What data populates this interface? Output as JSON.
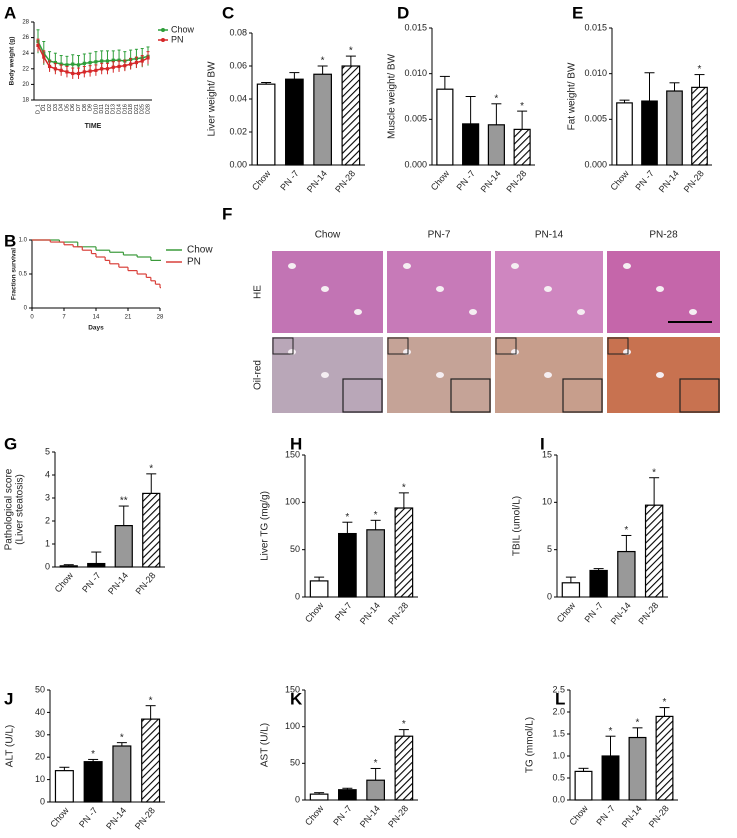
{
  "chart_data": [
    {
      "type": "line",
      "panel": "A",
      "ylabel": "Body weight (g)",
      "xlabel": "TIME",
      "categories": [
        "D_1",
        "D1",
        "D2",
        "D3",
        "D4",
        "D5",
        "D6",
        "D7",
        "D8",
        "D9",
        "D10",
        "D11",
        "D12",
        "D13",
        "D14",
        "D16",
        "D18",
        "D21",
        "D25",
        "D28"
      ],
      "series": [
        {
          "name": "Chow",
          "color": "#2e9e3a",
          "values": [
            25.5,
            24.0,
            23.0,
            22.8,
            22.6,
            22.5,
            22.6,
            22.5,
            22.7,
            22.8,
            22.9,
            23.0,
            23.0,
            23.1,
            23.1,
            23.0,
            23.2,
            23.3,
            23.4,
            23.6
          ],
          "errors": [
            1.5,
            1.5,
            1.2,
            1.2,
            1.1,
            1.1,
            1.2,
            1.2,
            1.2,
            1.2,
            1.3,
            1.3,
            1.3,
            1.2,
            1.3,
            1.2,
            1.2,
            1.2,
            1.2,
            1.2
          ]
        },
        {
          "name": "PN",
          "color": "#d62728",
          "values": [
            25.0,
            23.5,
            22.3,
            22.0,
            21.8,
            21.6,
            21.4,
            21.4,
            21.6,
            21.7,
            21.8,
            22.0,
            22.0,
            22.2,
            22.3,
            22.4,
            22.6,
            22.8,
            23.0,
            23.4
          ],
          "errors": [
            0.8,
            0.8,
            0.7,
            0.7,
            0.7,
            0.7,
            0.7,
            0.7,
            0.7,
            0.7,
            0.7,
            0.7,
            0.7,
            0.7,
            0.7,
            0.7,
            0.7,
            0.7,
            0.7,
            0.8
          ]
        }
      ],
      "ylim": [
        18,
        28
      ],
      "yticks": [
        18,
        20,
        22,
        24,
        26,
        28
      ],
      "legend": "right"
    },
    {
      "type": "step",
      "panel": "B",
      "ylabel": "Fraction survival",
      "xlabel": "Days",
      "series": [
        {
          "name": "Chow",
          "color": "#3a9a3a",
          "x": [
            0,
            6,
            10,
            14,
            17,
            20,
            23,
            26,
            28
          ],
          "values": [
            1,
            0.97,
            0.9,
            0.85,
            0.82,
            0.78,
            0.75,
            0.7,
            0.7
          ]
        },
        {
          "name": "PN",
          "color": "#d9403a",
          "x": [
            0,
            4,
            7,
            9,
            11,
            13,
            14,
            16,
            17,
            19,
            21,
            23,
            25,
            26,
            27,
            28
          ],
          "values": [
            1,
            0.97,
            0.93,
            0.9,
            0.85,
            0.8,
            0.75,
            0.7,
            0.65,
            0.6,
            0.55,
            0.5,
            0.45,
            0.4,
            0.35,
            0.3
          ]
        }
      ],
      "xlim": [
        0,
        28
      ],
      "xticks": [
        0,
        7,
        14,
        21,
        28
      ],
      "ylim": [
        0,
        1
      ],
      "yticks": [
        0,
        0.5,
        {
          "value": 1,
          "label": "1.0"
        }
      ],
      "legend": "right"
    },
    {
      "type": "bar",
      "panel": "C",
      "ylabel": "Liver weight/ BW",
      "categories": [
        "Chow",
        "PN -7",
        "PN-14",
        "PN-28"
      ],
      "values": [
        0.049,
        0.052,
        0.055,
        0.06
      ],
      "errors": [
        0.001,
        0.004,
        0.005,
        0.006
      ],
      "stars": [
        null,
        null,
        "*",
        "*"
      ],
      "colors": [
        "#ffffff",
        "#000000",
        "#999999",
        "#ffffff"
      ],
      "hatched": [
        false,
        false,
        false,
        true
      ],
      "ylim": [
        0,
        0.08
      ],
      "yticks": [
        {
          "value": 0,
          "label": "0.00"
        },
        0.02,
        0.04,
        0.06,
        0.08
      ]
    },
    {
      "type": "bar",
      "panel": "D",
      "ylabel": "Muscle weight/ BW",
      "categories": [
        "Chow",
        "PN -7",
        "PN-14",
        "PN-28"
      ],
      "values": [
        0.0083,
        0.0045,
        0.0044,
        0.0039
      ],
      "errors": [
        0.0014,
        0.003,
        0.0023,
        0.002
      ],
      "stars": [
        null,
        null,
        "*",
        "*"
      ],
      "colors": [
        "#ffffff",
        "#000000",
        "#999999",
        "#ffffff"
      ],
      "hatched": [
        false,
        false,
        false,
        true
      ],
      "ylim": [
        0,
        0.015
      ],
      "yticks": [
        {
          "value": 0,
          "label": "0.000"
        },
        0.005,
        {
          "value": 0.01,
          "label": "0.010"
        },
        0.015
      ]
    },
    {
      "type": "bar",
      "panel": "E",
      "ylabel": "Fat weight/ BW",
      "categories": [
        "Chow",
        "PN -7",
        "PN-14",
        "PN-28"
      ],
      "values": [
        0.0068,
        0.007,
        0.0081,
        0.0085
      ],
      "errors": [
        0.0003,
        0.0031,
        0.0009,
        0.0014
      ],
      "stars": [
        null,
        null,
        null,
        "*"
      ],
      "colors": [
        "#ffffff",
        "#000000",
        "#999999",
        "#ffffff"
      ],
      "hatched": [
        false,
        false,
        false,
        true
      ],
      "ylim": [
        0,
        0.015
      ],
      "yticks": [
        {
          "value": 0,
          "label": "0.000"
        },
        0.005,
        {
          "value": 0.01,
          "label": "0.010"
        },
        0.015
      ]
    },
    {
      "type": "bar",
      "panel": "G",
      "ylabel": "Pathological score",
      "ylabel2": "(Liver steatosis)",
      "categories": [
        "Chow",
        "PN -7",
        "PN-14",
        "PN-28"
      ],
      "values": [
        0.05,
        0.15,
        1.8,
        3.2
      ],
      "errors": [
        0.05,
        0.5,
        0.85,
        0.85
      ],
      "stars": [
        null,
        null,
        "**",
        "*"
      ],
      "colors": [
        "#ffffff",
        "#000000",
        "#999999",
        "#ffffff"
      ],
      "hatched": [
        false,
        false,
        false,
        true
      ],
      "ylim": [
        0,
        5
      ],
      "yticks": [
        0,
        1,
        2,
        3,
        4,
        5
      ]
    },
    {
      "type": "bar",
      "panel": "H",
      "ylabel": "Liver TG (mg/g)",
      "categories": [
        "Chow",
        "PN-7",
        "PN-14",
        "PN-28"
      ],
      "values": [
        17,
        67,
        71,
        94
      ],
      "errors": [
        4,
        12,
        10,
        16
      ],
      "stars": [
        null,
        "*",
        "*",
        "*"
      ],
      "colors": [
        "#ffffff",
        "#000000",
        "#999999",
        "#ffffff"
      ],
      "hatched": [
        false,
        false,
        false,
        true
      ],
      "ylim": [
        0,
        150
      ],
      "yticks": [
        0,
        50,
        100,
        150
      ]
    },
    {
      "type": "bar",
      "panel": "I",
      "ylabel": "TBIL (umol/L)",
      "categories": [
        "Chow",
        "PN -7",
        "PN-14",
        "PN-28"
      ],
      "values": [
        1.5,
        2.8,
        4.8,
        9.7
      ],
      "errors": [
        0.6,
        0.2,
        1.7,
        2.9
      ],
      "stars": [
        null,
        null,
        "*",
        "*"
      ],
      "colors": [
        "#ffffff",
        "#000000",
        "#999999",
        "#ffffff"
      ],
      "hatched": [
        false,
        false,
        false,
        true
      ],
      "ylim": [
        0,
        15
      ],
      "yticks": [
        0,
        5,
        10,
        15
      ]
    },
    {
      "type": "bar",
      "panel": "J",
      "ylabel": "ALT (U/L)",
      "categories": [
        "Chow",
        "PN -7",
        "PN-14",
        "PN-28"
      ],
      "values": [
        14,
        18,
        25,
        37
      ],
      "errors": [
        1.5,
        1,
        1.5,
        6
      ],
      "stars": [
        null,
        "*",
        "*",
        "*"
      ],
      "colors": [
        "#ffffff",
        "#000000",
        "#999999",
        "#ffffff"
      ],
      "hatched": [
        false,
        false,
        false,
        true
      ],
      "ylim": [
        0,
        50
      ],
      "yticks": [
        0,
        10,
        20,
        30,
        40,
        50
      ]
    },
    {
      "type": "bar",
      "panel": "K",
      "ylabel": "AST (U/L)",
      "categories": [
        "Chow",
        "PN -7",
        "PN-14",
        "PN-28"
      ],
      "values": [
        8,
        14,
        27,
        87
      ],
      "errors": [
        2,
        2,
        16,
        9
      ],
      "stars": [
        null,
        null,
        "*",
        "*"
      ],
      "colors": [
        "#ffffff",
        "#000000",
        "#999999",
        "#ffffff"
      ],
      "hatched": [
        false,
        false,
        false,
        true
      ],
      "ylim": [
        0,
        150
      ],
      "yticks": [
        0,
        50,
        100,
        150
      ]
    },
    {
      "type": "bar",
      "panel": "L",
      "ylabel": "TG (mmol/L)",
      "categories": [
        "Chow",
        "PN -7",
        "PN-14",
        "PN-28"
      ],
      "values": [
        0.65,
        1.0,
        1.42,
        1.9
      ],
      "errors": [
        0.07,
        0.45,
        0.22,
        0.2
      ],
      "stars": [
        null,
        "*",
        "*",
        "*"
      ],
      "colors": [
        "#ffffff",
        "#000000",
        "#999999",
        "#ffffff"
      ],
      "hatched": [
        false,
        false,
        false,
        true
      ],
      "ylim": [
        0,
        2.5
      ],
      "yticks": [
        {
          "value": 0,
          "label": "0.0"
        },
        0.5,
        {
          "value": 1,
          "label": "1.0"
        },
        1.5,
        {
          "value": 2,
          "label": "2.0"
        },
        2.5
      ]
    }
  ],
  "panel_f": {
    "panel": "F",
    "columns": [
      "Chow",
      "PN-7",
      "PN-14",
      "PN-28"
    ],
    "rows": [
      "HE",
      "Oil-red"
    ]
  }
}
